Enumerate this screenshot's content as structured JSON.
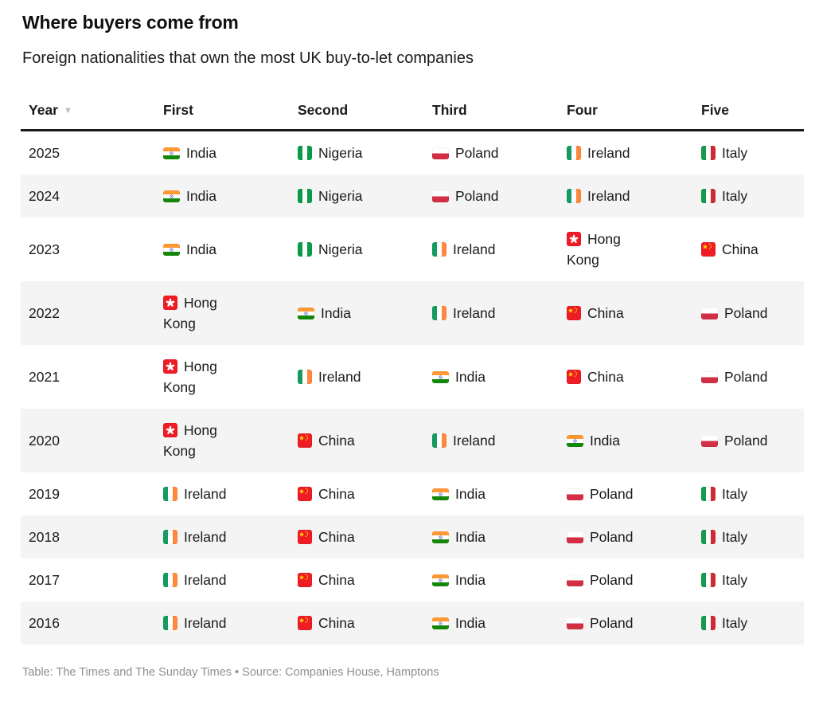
{
  "chart_data": {
    "type": "table",
    "title": "Where buyers come from",
    "subtitle": "Foreign nationalities that own the most UK buy-to-let companies",
    "columns": [
      "Year",
      "First",
      "Second",
      "Third",
      "Four",
      "Five"
    ],
    "sort": {
      "column": "Year",
      "direction": "descending"
    },
    "rows": [
      {
        "year": "2025",
        "ranks": [
          "India",
          "Nigeria",
          "Poland",
          "Ireland",
          "Italy"
        ]
      },
      {
        "year": "2024",
        "ranks": [
          "India",
          "Nigeria",
          "Poland",
          "Ireland",
          "Italy"
        ]
      },
      {
        "year": "2023",
        "ranks": [
          "India",
          "Nigeria",
          "Ireland",
          "Hong Kong",
          "China"
        ]
      },
      {
        "year": "2022",
        "ranks": [
          "Hong Kong",
          "India",
          "Ireland",
          "China",
          "Poland"
        ]
      },
      {
        "year": "2021",
        "ranks": [
          "Hong Kong",
          "Ireland",
          "India",
          "China",
          "Poland"
        ]
      },
      {
        "year": "2020",
        "ranks": [
          "Hong Kong",
          "China",
          "Ireland",
          "India",
          "Poland"
        ]
      },
      {
        "year": "2019",
        "ranks": [
          "Ireland",
          "China",
          "India",
          "Poland",
          "Italy"
        ]
      },
      {
        "year": "2018",
        "ranks": [
          "Ireland",
          "China",
          "India",
          "Poland",
          "Italy"
        ]
      },
      {
        "year": "2017",
        "ranks": [
          "Ireland",
          "China",
          "India",
          "Poland",
          "Italy"
        ]
      },
      {
        "year": "2016",
        "ranks": [
          "Ireland",
          "China",
          "India",
          "Poland",
          "Italy"
        ]
      }
    ]
  },
  "footer": {
    "text": "Table: The Times and The Sunday Times • Source: Companies House, Hamptons"
  },
  "icons": {
    "sort_descending": "▼"
  },
  "flag_icons": {
    "India": "india-flag-icon",
    "Nigeria": "nigeria-flag-icon",
    "Poland": "poland-flag-icon",
    "Ireland": "ireland-flag-icon",
    "Italy": "italy-flag-icon",
    "Hong Kong": "hong-kong-flag-icon",
    "China": "china-flag-icon"
  },
  "colors": {
    "row_alt_background": "#f4f4f4",
    "header_rule": "#1a1a1a",
    "footer_text": "#8f8f8f"
  }
}
